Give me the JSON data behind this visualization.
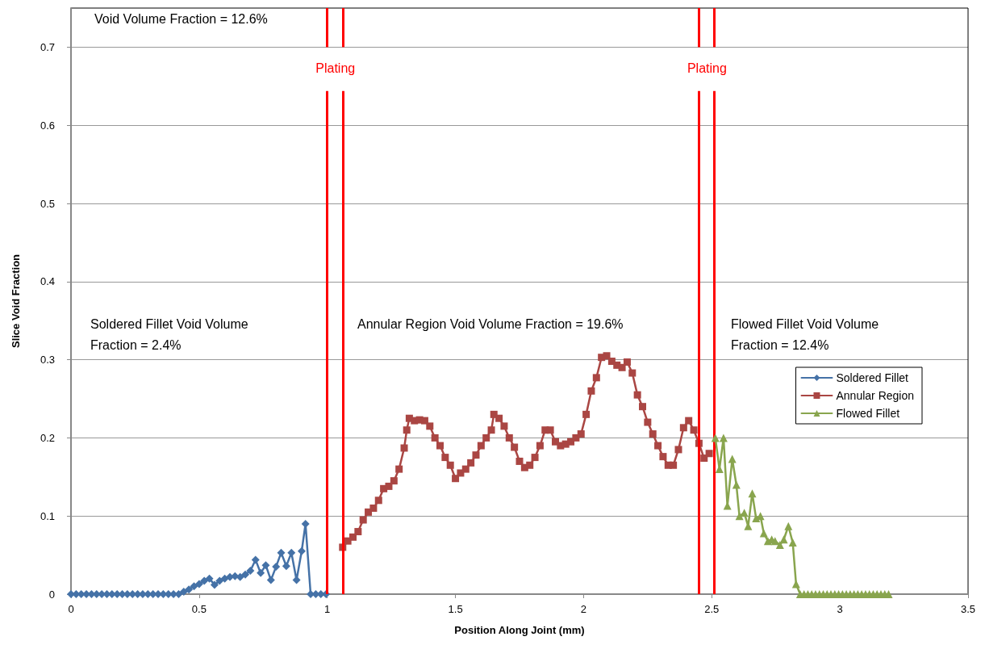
{
  "chart_data": {
    "type": "line",
    "xlabel": "Position Along Joint (mm)",
    "ylabel": "Slice Void Fraction",
    "xlim": [
      0,
      3.5
    ],
    "xticks": [
      0,
      0.5,
      1,
      1.5,
      2,
      2.5,
      3,
      3.5
    ],
    "ylim": [
      0,
      0.75
    ],
    "yticks": [
      0,
      0.1,
      0.2,
      0.3,
      0.4,
      0.5,
      0.6,
      0.7
    ],
    "grid": "y",
    "legend": "right",
    "line_style": "solid",
    "series": [
      {
        "name": "Soldered Fillet",
        "color": "#4572a7",
        "marker": "diamond",
        "x": [
          0,
          0.02,
          0.04,
          0.06,
          0.08,
          0.1,
          0.12,
          0.14,
          0.16,
          0.18,
          0.2,
          0.22,
          0.24,
          0.26,
          0.28,
          0.3,
          0.32,
          0.34,
          0.36,
          0.38,
          0.4,
          0.42,
          0.44,
          0.46,
          0.48,
          0.5,
          0.52,
          0.54,
          0.56,
          0.58,
          0.6,
          0.62,
          0.64,
          0.66,
          0.68,
          0.7,
          0.72,
          0.74,
          0.76,
          0.78,
          0.8,
          0.82,
          0.84,
          0.86,
          0.88,
          0.9,
          0.915,
          0.935,
          0.955,
          0.975,
          0.995
        ],
        "values": [
          0,
          0,
          0,
          0,
          0,
          0,
          0,
          0,
          0,
          0,
          0,
          0,
          0,
          0,
          0,
          0,
          0,
          0,
          0,
          0,
          0,
          0,
          0.003,
          0.006,
          0.01,
          0.013,
          0.017,
          0.02,
          0.012,
          0.017,
          0.02,
          0.022,
          0.023,
          0.022,
          0.025,
          0.03,
          0.044,
          0.027,
          0.037,
          0.018,
          0.035,
          0.053,
          0.036,
          0.053,
          0.018,
          0.055,
          0.09,
          0,
          0,
          0,
          0
        ]
      },
      {
        "name": "Annular Region",
        "color": "#aa4643",
        "marker": "square",
        "x": [
          1.06,
          1.08,
          1.1,
          1.12,
          1.14,
          1.16,
          1.18,
          1.2,
          1.22,
          1.24,
          1.26,
          1.28,
          1.3,
          1.31,
          1.32,
          1.34,
          1.36,
          1.38,
          1.4,
          1.42,
          1.44,
          1.46,
          1.48,
          1.5,
          1.52,
          1.54,
          1.56,
          1.58,
          1.6,
          1.62,
          1.64,
          1.65,
          1.67,
          1.69,
          1.71,
          1.73,
          1.75,
          1.77,
          1.79,
          1.81,
          1.83,
          1.85,
          1.87,
          1.89,
          1.91,
          1.93,
          1.95,
          1.97,
          1.99,
          2.01,
          2.03,
          2.05,
          2.07,
          2.09,
          2.11,
          2.13,
          2.15,
          2.17,
          2.19,
          2.21,
          2.23,
          2.25,
          2.27,
          2.29,
          2.31,
          2.33,
          2.35,
          2.37,
          2.39,
          2.41,
          2.43,
          2.45,
          2.47,
          2.49
        ],
        "values": [
          0.06,
          0.068,
          0.073,
          0.08,
          0.095,
          0.105,
          0.11,
          0.12,
          0.135,
          0.138,
          0.145,
          0.16,
          0.187,
          0.21,
          0.225,
          0.222,
          0.223,
          0.222,
          0.215,
          0.2,
          0.19,
          0.175,
          0.165,
          0.148,
          0.155,
          0.16,
          0.168,
          0.178,
          0.19,
          0.2,
          0.21,
          0.23,
          0.225,
          0.215,
          0.2,
          0.188,
          0.17,
          0.162,
          0.165,
          0.175,
          0.19,
          0.21,
          0.21,
          0.195,
          0.19,
          0.192,
          0.195,
          0.2,
          0.205,
          0.23,
          0.26,
          0.277,
          0.303,
          0.305,
          0.298,
          0.293,
          0.29,
          0.297,
          0.283,
          0.255,
          0.24,
          0.22,
          0.205,
          0.19,
          0.176,
          0.165,
          0.165,
          0.185,
          0.213,
          0.222,
          0.21,
          0.193,
          0.174,
          0.18
        ]
      },
      {
        "name": "Flowed Fillet",
        "color": "#89a54e",
        "marker": "triangle",
        "x": [
          2.514,
          2.53,
          2.546,
          2.561,
          2.58,
          2.596,
          2.608,
          2.627,
          2.642,
          2.658,
          2.673,
          2.69,
          2.703,
          2.719,
          2.734,
          2.747,
          2.766,
          2.781,
          2.799,
          2.816,
          2.829,
          2.845,
          2.86,
          2.875,
          2.89,
          2.905,
          2.92,
          2.935,
          2.95,
          2.965,
          2.98,
          2.995,
          3.01,
          3.025,
          3.04,
          3.055,
          3.07,
          3.085,
          3.1,
          3.115,
          3.13,
          3.145,
          3.16,
          3.175,
          3.19
        ],
        "values": [
          0.2,
          0.16,
          0.2,
          0.113,
          0.173,
          0.14,
          0.1,
          0.104,
          0.087,
          0.129,
          0.097,
          0.1,
          0.078,
          0.068,
          0.07,
          0.068,
          0.063,
          0.07,
          0.087,
          0.066,
          0.013,
          0,
          0,
          0,
          0,
          0,
          0,
          0,
          0,
          0,
          0,
          0,
          0,
          0,
          0,
          0,
          0,
          0,
          0,
          0,
          0,
          0,
          0,
          0,
          0
        ]
      }
    ],
    "ref_lines": [
      {
        "axis": "x",
        "value": 1.0,
        "label": "Plating",
        "color": "#ff0000"
      },
      {
        "axis": "x",
        "value": 1.06,
        "color": "#ff0000"
      },
      {
        "axis": "x",
        "value": 2.45,
        "label": "Plating",
        "color": "#ff0000"
      },
      {
        "axis": "x",
        "value": 2.51,
        "color": "#ff0000"
      }
    ],
    "annotations": [
      "Void Volume Fraction = 12.6%",
      "Soldered Fillet Void Volume Fraction = 2.4%",
      "Annular Region Void Volume Fraction = 19.6%",
      "Flowed Fillet Void Volume Fraction = 12.4%"
    ]
  }
}
